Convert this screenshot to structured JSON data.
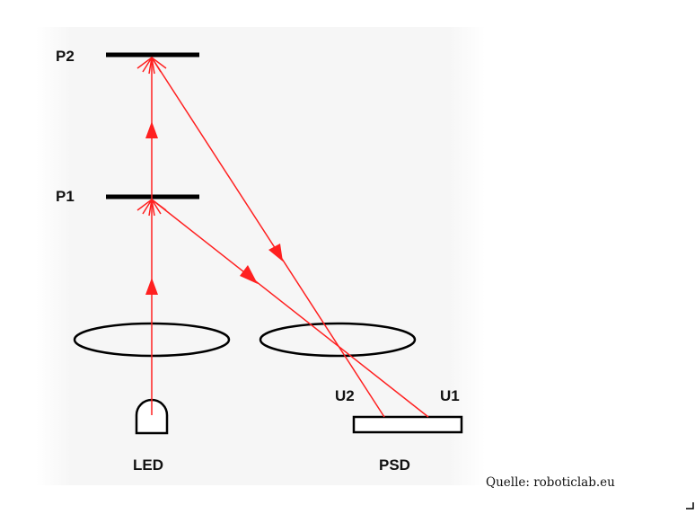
{
  "labels": {
    "p2": "P2",
    "p1": "P1",
    "led": "LED",
    "psd": "PSD",
    "u2": "U2",
    "u1": "U1"
  },
  "credit": "Quelle: roboticlab.eu",
  "colors": {
    "beam": "#ff2020",
    "ink": "#000000",
    "background_panel": "#f7f7f7"
  }
}
